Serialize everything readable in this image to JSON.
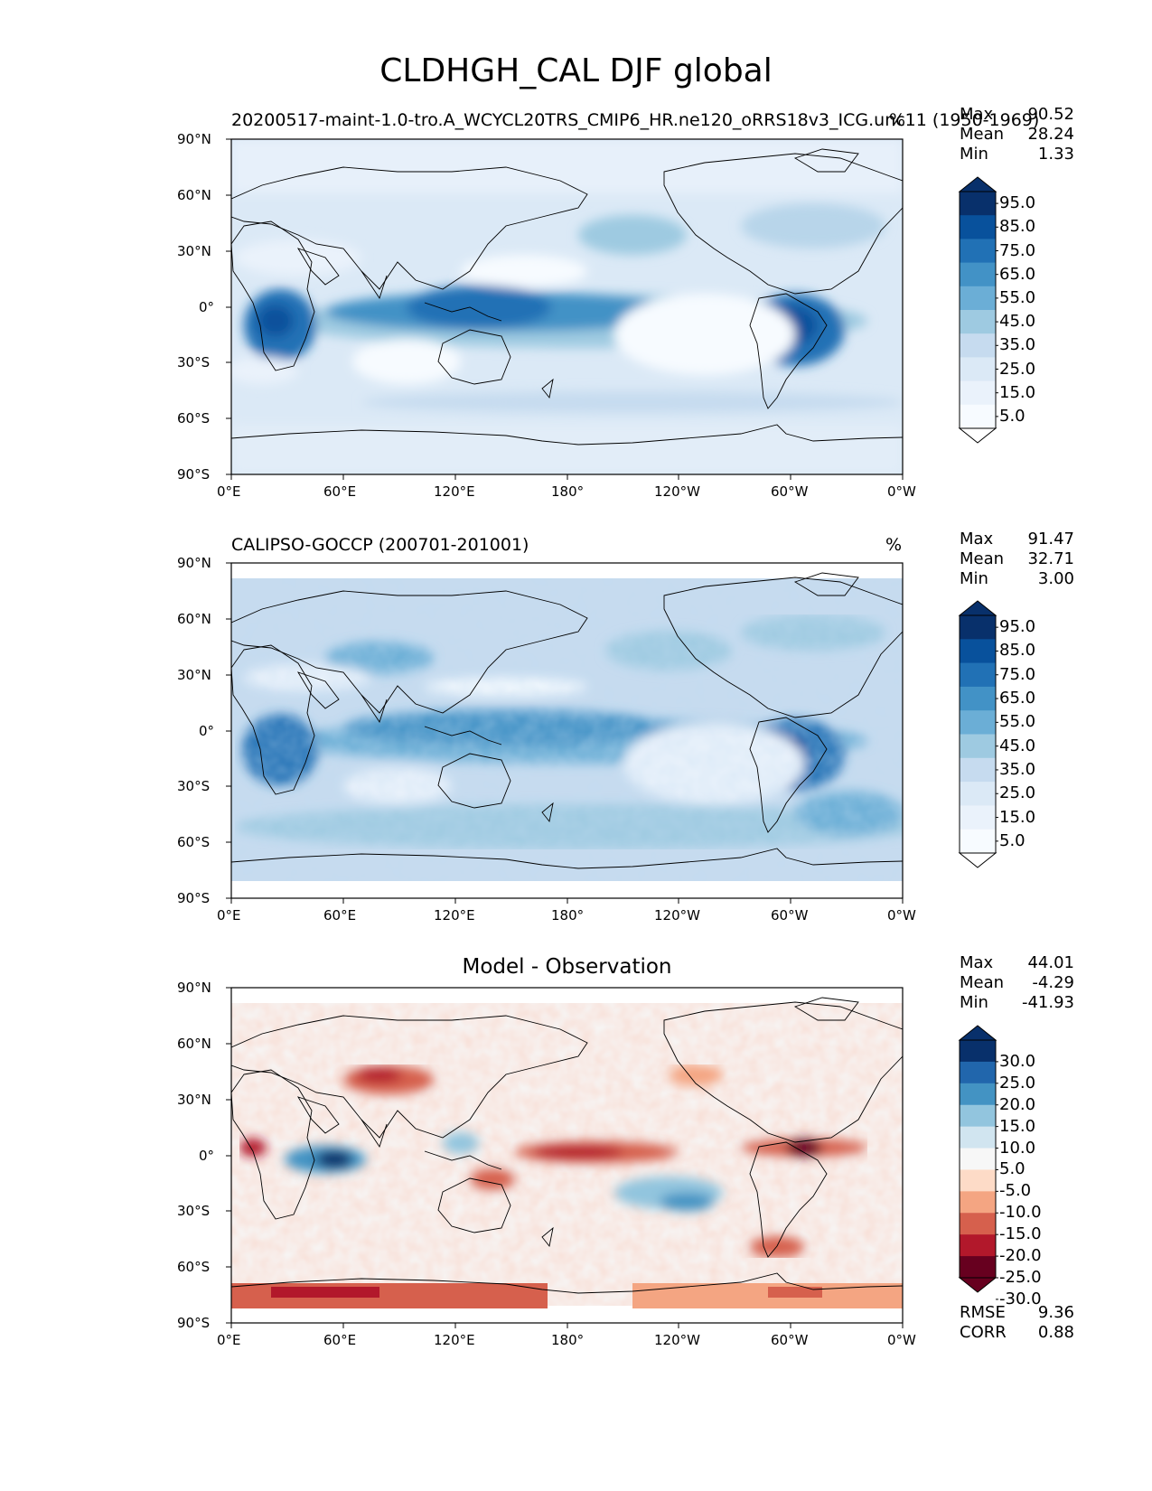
{
  "figure": {
    "title": "CLDHGH_CAL DJF global"
  },
  "axes": {
    "lat_ticks": [
      "90°N",
      "60°N",
      "30°N",
      "0°",
      "30°S",
      "60°S",
      "90°S"
    ],
    "lon_ticks": [
      "0°E",
      "60°E",
      "120°E",
      "180°",
      "120°W",
      "60°W",
      "0°W"
    ]
  },
  "panels": [
    {
      "name": "test",
      "left_title": "20200517-maint-1.0-tro.A_WCYCL20TRS_CMIP6_HR.ne120_oRRS18v3_ICG.unc11 (1950-1969)",
      "center_title": "",
      "units": "%",
      "stats": [
        {
          "label": "Max",
          "value": "90.52"
        },
        {
          "label": "Mean",
          "value": "28.24"
        },
        {
          "label": "Min",
          "value": "1.33"
        }
      ],
      "colorbar": {
        "labels": [
          "95.0",
          "85.0",
          "75.0",
          "65.0",
          "55.0",
          "45.0",
          "35.0",
          "25.0",
          "15.0",
          "5.0"
        ],
        "colors": [
          "#08306b",
          "#08519c",
          "#2171b5",
          "#4292c6",
          "#6baed6",
          "#9ecae1",
          "#c6dbef",
          "#dbe9f6",
          "#eaf2fb",
          "#f7fbff"
        ],
        "over_color": "#08306b",
        "under_color": "#ffffff"
      }
    },
    {
      "name": "reference",
      "left_title": "CALIPSO-GOCCP (200701-201001)",
      "center_title": "",
      "units": "%",
      "stats": [
        {
          "label": "Max",
          "value": "91.47"
        },
        {
          "label": "Mean",
          "value": "32.71"
        },
        {
          "label": "Min",
          "value": "3.00"
        }
      ],
      "colorbar": {
        "labels": [
          "95.0",
          "85.0",
          "75.0",
          "65.0",
          "55.0",
          "45.0",
          "35.0",
          "25.0",
          "15.0",
          "5.0"
        ],
        "colors": [
          "#08306b",
          "#08519c",
          "#2171b5",
          "#4292c6",
          "#6baed6",
          "#9ecae1",
          "#c6dbef",
          "#dbe9f6",
          "#eaf2fb",
          "#f7fbff"
        ],
        "over_color": "#08306b",
        "under_color": "#ffffff"
      }
    },
    {
      "name": "difference",
      "left_title": "",
      "center_title": "Model - Observation",
      "units": "",
      "stats": [
        {
          "label": "Max",
          "value": "44.01"
        },
        {
          "label": "Mean",
          "value": "-4.29"
        },
        {
          "label": "Min",
          "value": "-41.93"
        }
      ],
      "extra_stats": [
        {
          "label": "RMSE",
          "value": "9.36"
        },
        {
          "label": "CORR",
          "value": "0.88"
        }
      ],
      "colorbar": {
        "labels": [
          "30.0",
          "25.0",
          "20.0",
          "15.0",
          "10.0",
          "5.0",
          "-5.0",
          "-10.0",
          "-15.0",
          "-20.0",
          "-25.0",
          "-30.0"
        ],
        "colors": [
          "#08306b",
          "#2166ac",
          "#4393c3",
          "#92c5de",
          "#d1e5f0",
          "#f7f7f7",
          "#fddbc7",
          "#f4a582",
          "#d6604d",
          "#b2182b",
          "#67001f"
        ],
        "over_color": "#08306b",
        "under_color": "#67001f"
      }
    }
  ]
}
